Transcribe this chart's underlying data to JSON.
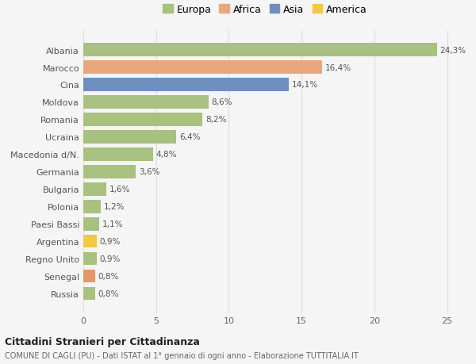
{
  "categories": [
    "Russia",
    "Senegal",
    "Regno Unito",
    "Argentina",
    "Paesi Bassi",
    "Polonia",
    "Bulgaria",
    "Germania",
    "Macedonia d/N.",
    "Ucraina",
    "Romania",
    "Moldova",
    "Cina",
    "Marocco",
    "Albania"
  ],
  "values": [
    0.8,
    0.8,
    0.9,
    0.9,
    1.1,
    1.2,
    1.6,
    3.6,
    4.8,
    6.4,
    8.2,
    8.6,
    14.1,
    16.4,
    24.3
  ],
  "colors": [
    "#a8c080",
    "#e8956a",
    "#a8c080",
    "#f5c842",
    "#a8c080",
    "#a8c080",
    "#a8c080",
    "#a8c080",
    "#a8c080",
    "#a8c080",
    "#a8c080",
    "#a8c080",
    "#6e8fbf",
    "#e8a87c",
    "#a8c080"
  ],
  "labels": [
    "0,8%",
    "0,8%",
    "0,9%",
    "0,9%",
    "1,1%",
    "1,2%",
    "1,6%",
    "3,6%",
    "4,8%",
    "6,4%",
    "8,2%",
    "8,6%",
    "14,1%",
    "16,4%",
    "24,3%"
  ],
  "legend": [
    {
      "label": "Europa",
      "color": "#a8c080"
    },
    {
      "label": "Africa",
      "color": "#e8a87c"
    },
    {
      "label": "Asia",
      "color": "#6e8fbf"
    },
    {
      "label": "America",
      "color": "#f5c842"
    }
  ],
  "xlim": [
    0,
    26
  ],
  "xticks": [
    0,
    5,
    10,
    15,
    20,
    25
  ],
  "title": "Cittadini Stranieri per Cittadinanza",
  "subtitle": "COMUNE DI CAGLI (PU) - Dati ISTAT al 1° gennaio di ogni anno - Elaborazione TUTTITALIA.IT",
  "bg_color": "#f5f5f5",
  "grid_color": "#dddddd"
}
